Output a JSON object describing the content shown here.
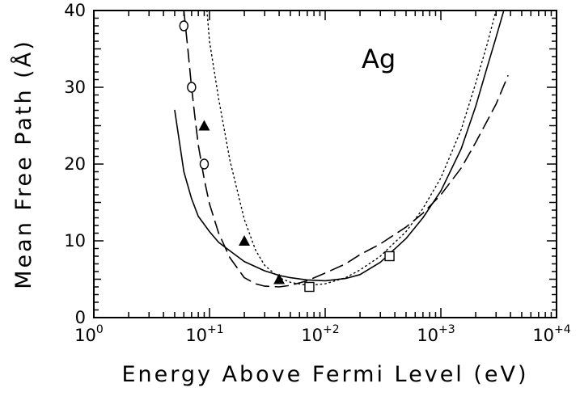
{
  "chart_data": {
    "type": "line",
    "title": "",
    "panel_label": "Ag",
    "xlabel": "Energy Above Fermi Level (eV)",
    "ylabel": "Mean Free Path (Å)",
    "xscale": "log",
    "xlim": [
      1,
      10000
    ],
    "ylim": [
      0,
      40
    ],
    "x_ticks": [
      {
        "value": 1,
        "base": "10",
        "exp": "0"
      },
      {
        "value": 10,
        "base": "10",
        "exp": "+1"
      },
      {
        "value": 100,
        "base": "10",
        "exp": "+2"
      },
      {
        "value": 1000,
        "base": "10",
        "exp": "+3"
      },
      {
        "value": 10000,
        "base": "10",
        "exp": "+4"
      }
    ],
    "y_ticks": [
      {
        "value": 0,
        "label": "0"
      },
      {
        "value": 10,
        "label": "10"
      },
      {
        "value": 20,
        "label": "20"
      },
      {
        "value": 30,
        "label": "30"
      },
      {
        "value": 40,
        "label": "40"
      }
    ],
    "grid": false,
    "series": [
      {
        "style": "solid",
        "x": [
          5,
          6,
          7,
          8,
          10,
          12,
          15,
          20,
          30,
          40,
          50,
          70,
          100,
          150,
          200,
          300,
          500,
          700,
          1000,
          1500,
          2000,
          2500,
          3000,
          3500
        ],
        "y": [
          27,
          19,
          15.5,
          13.2,
          11.2,
          9.8,
          8.7,
          7.3,
          6.1,
          5.5,
          5.2,
          4.9,
          4.8,
          5.1,
          5.6,
          7.2,
          10.3,
          13.0,
          16.5,
          22.0,
          27.5,
          32.5,
          36.5,
          40
        ]
      },
      {
        "style": "dashed",
        "x": [
          6,
          6.5,
          7,
          7.5,
          8,
          9,
          10,
          12,
          15,
          20,
          25,
          30,
          40,
          50,
          70,
          100,
          150,
          200,
          300,
          500,
          700,
          1000,
          1500,
          2000,
          3000,
          3800
        ],
        "y": [
          40,
          35,
          30,
          26,
          22.5,
          18,
          14.8,
          11,
          7.8,
          5.2,
          4.4,
          4.1,
          4.0,
          4.2,
          4.8,
          5.8,
          7.0,
          8.2,
          9.6,
          11.8,
          13.6,
          16.0,
          19.5,
          22.8,
          27.8,
          31.5
        ]
      },
      {
        "style": "dotted",
        "x": [
          9.5,
          10,
          12,
          15,
          20,
          25,
          30,
          40,
          50,
          70,
          100,
          150,
          200,
          300,
          500,
          700,
          1000,
          1500,
          2000,
          2500,
          3000
        ],
        "y": [
          40,
          36,
          28.5,
          20.5,
          12.8,
          8.8,
          6.8,
          5.2,
          4.6,
          4.2,
          4.4,
          5.2,
          6.2,
          8.0,
          11.2,
          14.2,
          18.2,
          24.5,
          30.5,
          35.5,
          40
        ]
      }
    ],
    "markers": [
      {
        "symbol": "circle",
        "x": [
          6,
          7,
          9
        ],
        "y": [
          38,
          30,
          20
        ]
      },
      {
        "symbol": "triangle",
        "x": [
          9,
          20,
          40
        ],
        "y": [
          25,
          10,
          5
        ]
      },
      {
        "symbol": "square",
        "x": [
          73,
          360
        ],
        "y": [
          4,
          8
        ]
      }
    ]
  }
}
